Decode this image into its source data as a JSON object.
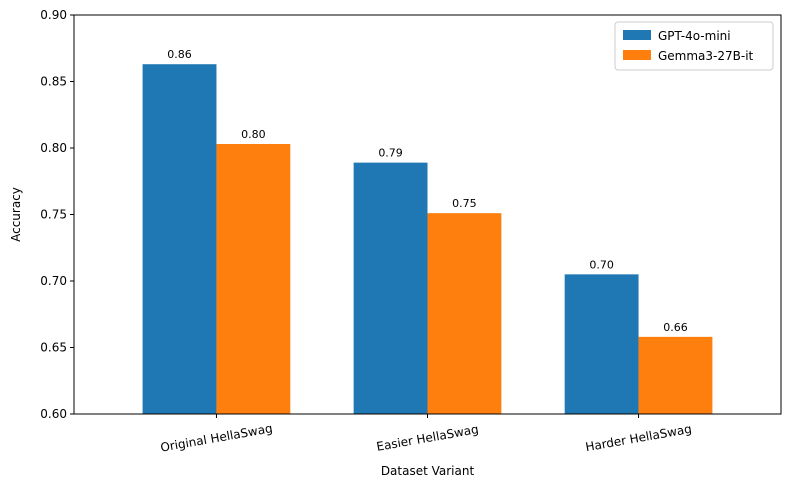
{
  "chart_data": {
    "type": "bar",
    "title": "",
    "xlabel": "Dataset Variant",
    "ylabel": "Accuracy",
    "categories": [
      "Original HellaSwag",
      "Easier HellaSwag",
      "Harder HellaSwag"
    ],
    "series": [
      {
        "name": "GPT-4o-mini",
        "color": "#1f77b4",
        "values": [
          0.863,
          0.789,
          0.705
        ],
        "labels": [
          "0.86",
          "0.79",
          "0.70"
        ]
      },
      {
        "name": "Gemma3-27B-it",
        "color": "#ff7f0e",
        "values": [
          0.803,
          0.751,
          0.658
        ],
        "labels": [
          "0.80",
          "0.75",
          "0.66"
        ]
      }
    ],
    "ylim": [
      0.6,
      0.9
    ],
    "yticks": [
      "0.60",
      "0.65",
      "0.70",
      "0.75",
      "0.80",
      "0.85",
      "0.90"
    ],
    "ytick_values": [
      0.6,
      0.65,
      0.7,
      0.75,
      0.8,
      0.85,
      0.9
    ],
    "grid": false,
    "legend_position": "top-right",
    "xtick_rotation_deg": -10
  }
}
